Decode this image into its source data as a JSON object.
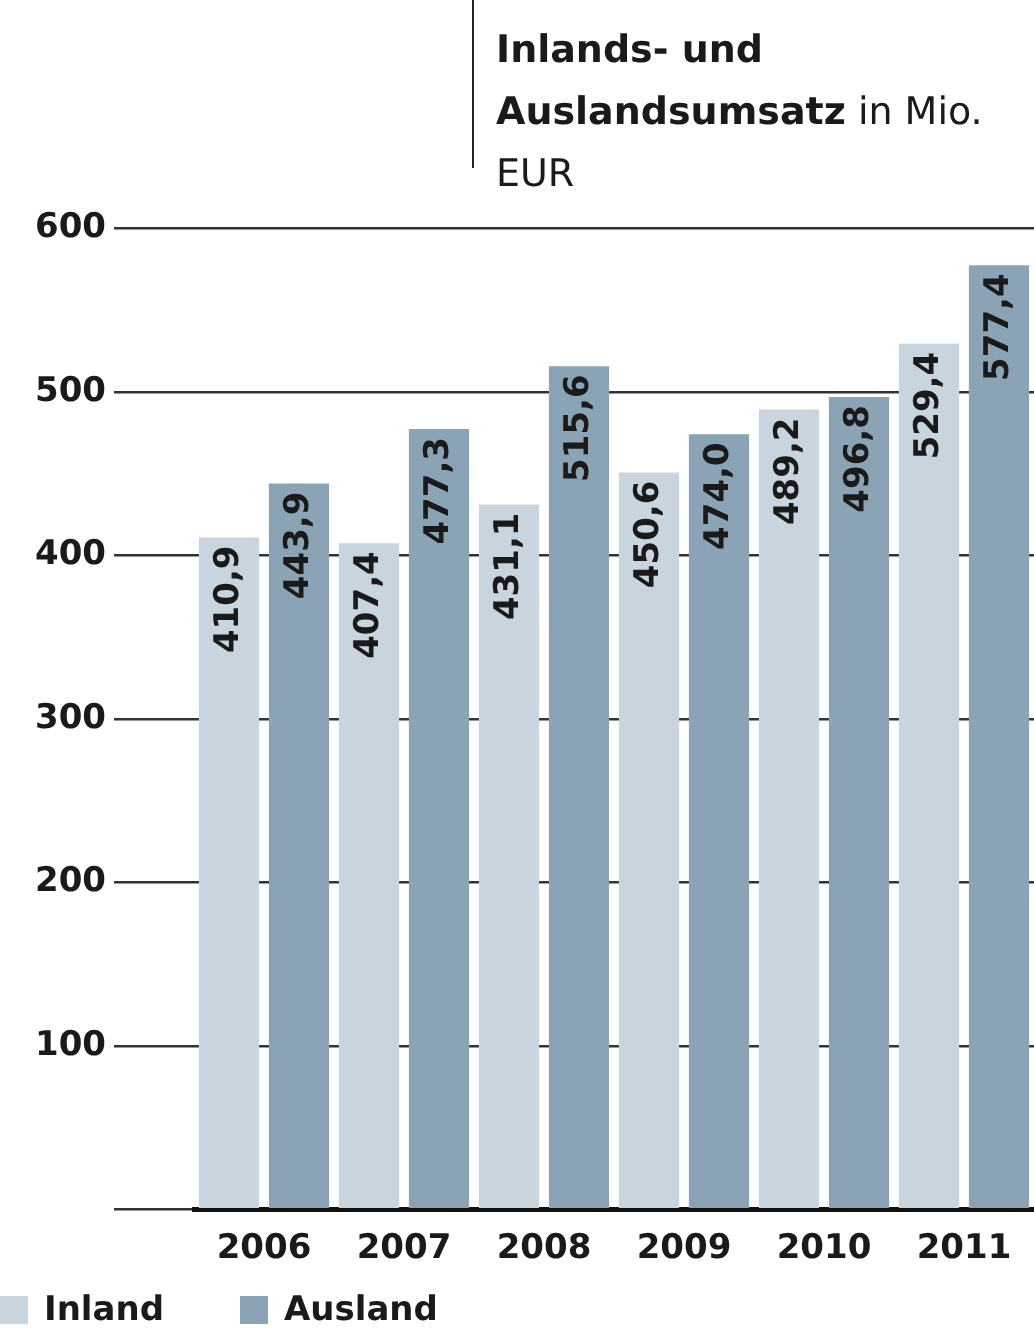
{
  "chart_data": {
    "type": "bar",
    "title": "Inlands- und Auslandsumsatz",
    "subtitle": "in Mio. EUR",
    "categories": [
      "2006",
      "2007",
      "2008",
      "2009",
      "2010",
      "2011"
    ],
    "series": [
      {
        "name": "Inland",
        "color": "#c9d5de",
        "values": [
          410.9,
          407.4,
          431.1,
          450.6,
          489.2,
          529.4
        ],
        "value_labels": [
          "410,9",
          "407,4",
          "431,1",
          "450,6",
          "489,2",
          "529,4"
        ]
      },
      {
        "name": "Ausland",
        "color": "#8aa4b5",
        "values": [
          443.9,
          477.3,
          515.6,
          474.0,
          496.8,
          577.4
        ],
        "value_labels": [
          "443,9",
          "477,3",
          "515,6",
          "474,0",
          "496,8",
          "577,4"
        ]
      }
    ],
    "ylim": [
      0,
      600
    ],
    "yticks": [
      {
        "value": 0,
        "label": null
      },
      100,
      200,
      300,
      400,
      500,
      600
    ],
    "grid": "y",
    "legend": "bottom"
  }
}
